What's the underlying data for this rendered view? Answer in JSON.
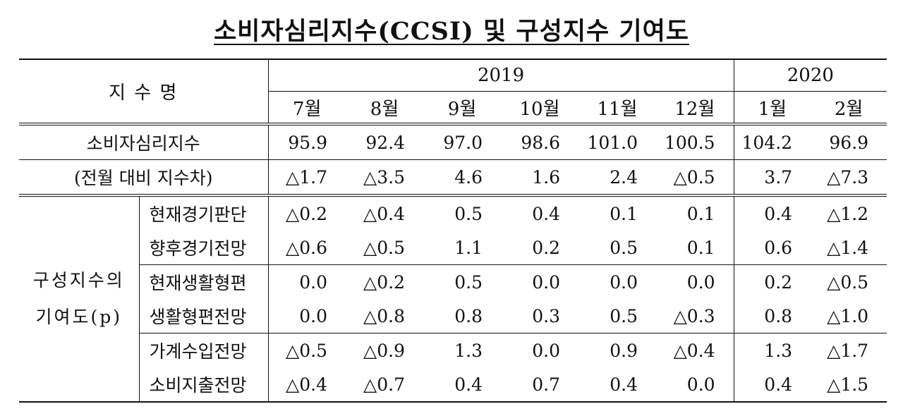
{
  "title": "소비자심리지수(CCSI) 및 구성지수 기여도",
  "header": {
    "index_name": "지   수   명",
    "year_2019": "2019",
    "year_2020": "2020",
    "months": [
      "7월",
      "8월",
      "9월",
      "10월",
      "11월",
      "12월",
      "1월",
      "2월"
    ]
  },
  "ccsi": {
    "label": "소비자심리지수",
    "values": [
      "95.9",
      "92.4",
      "97.0",
      "98.6",
      "101.0",
      "100.5",
      "104.2",
      "96.9"
    ]
  },
  "diff": {
    "label": "(전월 대비 지수차)",
    "values": [
      "△1.7",
      "△3.5",
      "4.6",
      "1.6",
      "2.4",
      "△0.5",
      "3.7",
      "△7.3"
    ]
  },
  "group": {
    "label_line1": "구성지수의",
    "label_line2": "기여도(p)"
  },
  "components": [
    {
      "label": "현재경기판단",
      "values": [
        "△0.2",
        "△0.4",
        "0.5",
        "0.4",
        "0.1",
        "0.1",
        "0.4",
        "△1.2"
      ]
    },
    {
      "label": "향후경기전망",
      "values": [
        "△0.6",
        "△0.5",
        "1.1",
        "0.2",
        "0.5",
        "0.1",
        "0.6",
        "△1.4"
      ]
    },
    {
      "label": "현재생활형편",
      "values": [
        "0.0",
        "△0.2",
        "0.5",
        "0.0",
        "0.0",
        "0.0",
        "0.2",
        "△0.5"
      ]
    },
    {
      "label": "생활형편전망",
      "values": [
        "0.0",
        "△0.8",
        "0.8",
        "0.3",
        "0.5",
        "△0.3",
        "0.8",
        "△1.0"
      ]
    },
    {
      "label": "가계수입전망",
      "values": [
        "△0.5",
        "△0.9",
        "1.3",
        "0.0",
        "0.9",
        "△0.4",
        "1.3",
        "△1.7"
      ]
    },
    {
      "label": "소비지출전망",
      "values": [
        "△0.4",
        "△0.7",
        "0.4",
        "0.7",
        "0.4",
        "0.0",
        "0.4",
        "△1.5"
      ]
    }
  ]
}
